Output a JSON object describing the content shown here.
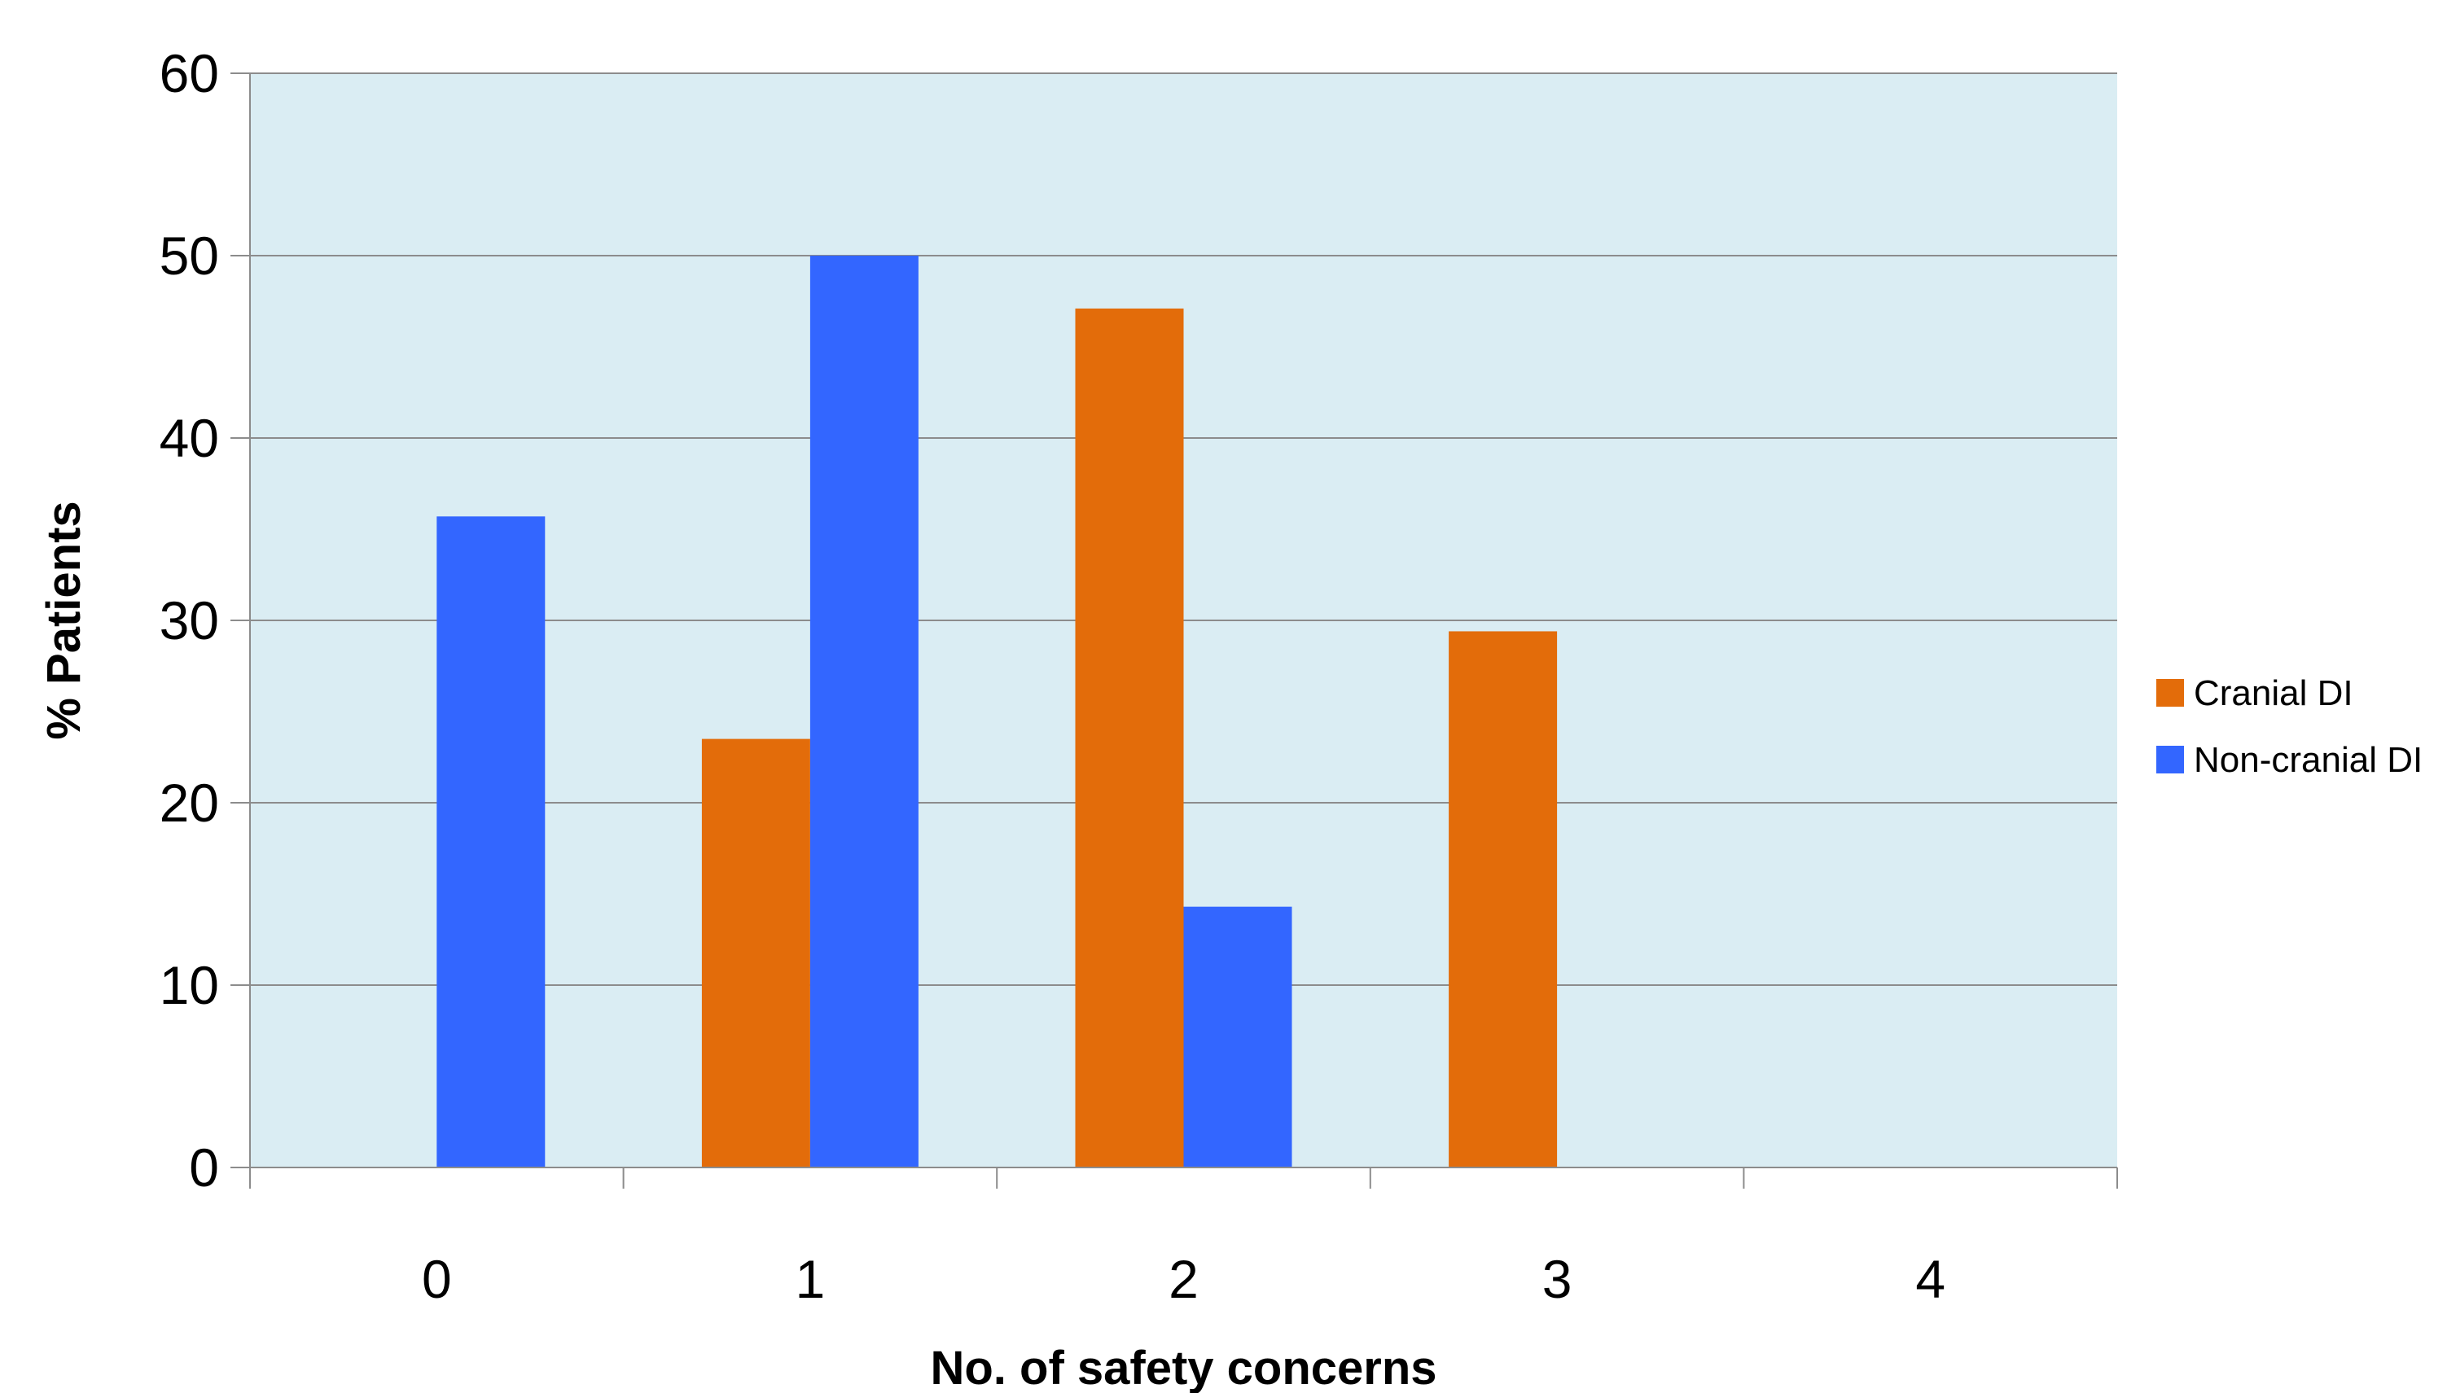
{
  "chart_data": {
    "type": "bar",
    "title": "",
    "xlabel": "No. of safety concerns",
    "ylabel": "% Patients",
    "categories": [
      "0",
      "1",
      "2",
      "3",
      "4"
    ],
    "series": [
      {
        "name": "Cranial DI",
        "color": "#e36c0a",
        "values": [
          0,
          23.5,
          47.1,
          29.4,
          0
        ]
      },
      {
        "name": "Non-cranial DI",
        "color": "#3366ff",
        "values": [
          35.7,
          50.0,
          14.3,
          0,
          0
        ]
      }
    ],
    "ylim": [
      0,
      60
    ],
    "yticks": [
      0,
      10,
      20,
      30,
      40,
      50,
      60
    ],
    "grid": true,
    "plot_background": "#daedf3",
    "legend_position": "right"
  }
}
